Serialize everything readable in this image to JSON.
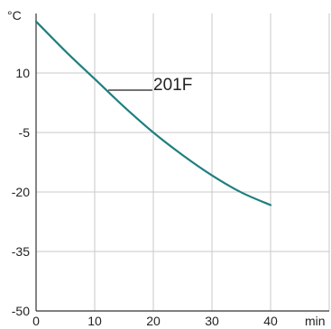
{
  "chart_data": {
    "type": "line",
    "title": "",
    "xlabel": "min",
    "ylabel": "°C",
    "xlim": [
      0,
      40
    ],
    "ylim": [
      -50,
      25
    ],
    "x_ticks": [
      0,
      10,
      20,
      30,
      40
    ],
    "y_ticks": [
      -50,
      -35,
      -20,
      -5,
      10
    ],
    "grid": true,
    "legend": "inline, upper-middle",
    "colors": {
      "series": "#1f7f7f",
      "grid": "#c8c8c8",
      "axis": "#333333"
    },
    "series": [
      {
        "name": "201F",
        "x": [
          0,
          5,
          10,
          15,
          20,
          25,
          30,
          35,
          40
        ],
        "y": [
          23,
          15.5,
          8.5,
          1.5,
          -5,
          -10.7,
          -15.8,
          -20.1,
          -23.3
        ]
      }
    ]
  }
}
